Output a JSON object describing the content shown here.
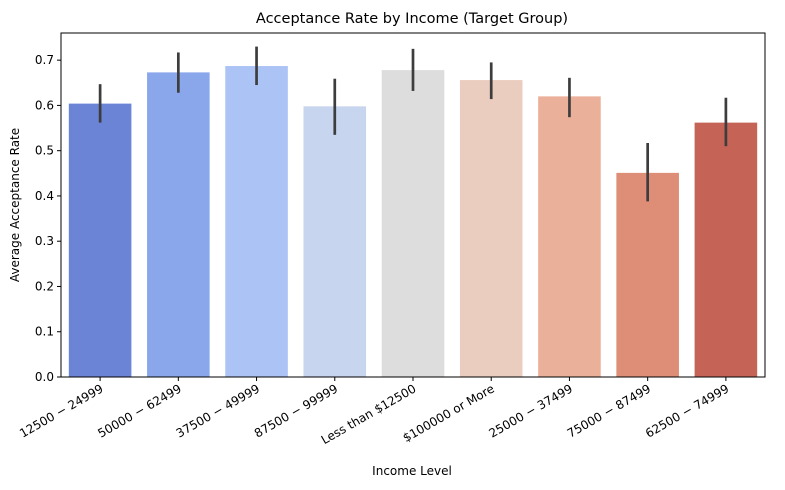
{
  "chart_data": {
    "type": "bar",
    "title": "Acceptance Rate by Income (Target Group)",
    "xlabel": "Income Level",
    "ylabel": "Average Acceptance Rate",
    "categories": [
      "$12500 - $24999",
      "$50000 - $62499",
      "$37500 - $49999",
      "$87500 - $99999",
      "Less than $12500",
      "$100000 or More",
      "$25000 - $37499",
      "$75000 - $87499",
      "$62500 - $74999"
    ],
    "x_tick_labels": [
      "12500 − 24999",
      "50000 − 62499",
      "37500 − 49999",
      "87500 − 99999",
      "Less than $12500",
      "$100000 or More",
      "25000 − 37499",
      "75000 − 87499",
      "62500 − 74999"
    ],
    "values": [
      0.604,
      0.673,
      0.687,
      0.598,
      0.678,
      0.656,
      0.62,
      0.451,
      0.562
    ],
    "error_low": [
      0.562,
      0.628,
      0.645,
      0.535,
      0.632,
      0.614,
      0.574,
      0.388,
      0.51
    ],
    "error_high": [
      0.647,
      0.717,
      0.73,
      0.659,
      0.725,
      0.695,
      0.661,
      0.517,
      0.617
    ],
    "colors": [
      "#6b84d6",
      "#8ba7ec",
      "#acc3f5",
      "#c8d5ef",
      "#dddddd",
      "#ebcdc0",
      "#ebb09a",
      "#de8e77",
      "#c46356"
    ],
    "ylim": [
      0,
      0.76
    ],
    "yticks": [
      "0.0",
      "0.1",
      "0.2",
      "0.3",
      "0.4",
      "0.5",
      "0.6",
      "0.7"
    ],
    "grid": false,
    "legend": "none"
  }
}
